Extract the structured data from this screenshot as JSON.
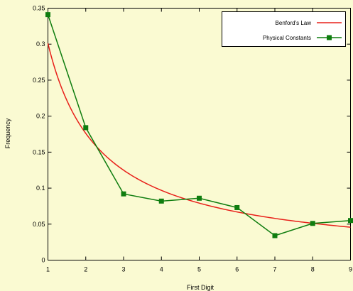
{
  "chart_data": {
    "type": "line",
    "title": "",
    "xlabel": "First Digit",
    "ylabel": "Frequency",
    "xlim": [
      1,
      9
    ],
    "ylim": [
      0,
      0.35
    ],
    "x_ticks": [
      "1",
      "2",
      "3",
      "4",
      "5",
      "6",
      "7",
      "8",
      "9"
    ],
    "y_ticks": [
      "0",
      "0.05",
      "0.1",
      "0.15",
      "0.2",
      "0.25",
      "0.3",
      "0.35"
    ],
    "grid": false,
    "legend_position": "top-right",
    "series": [
      {
        "name": "Benford's Law",
        "color": "#e8201a",
        "marker": "none",
        "x": [
          1,
          2,
          3,
          4,
          5,
          6,
          7,
          8,
          9
        ],
        "values": [
          0.301,
          0.176,
          0.125,
          0.097,
          0.079,
          0.067,
          0.058,
          0.051,
          0.046
        ]
      },
      {
        "name": "Physical Constants",
        "color": "#0f7d0f",
        "marker": "square",
        "x": [
          1,
          2,
          3,
          4,
          5,
          6,
          7,
          8,
          9
        ],
        "values": [
          0.341,
          0.184,
          0.092,
          0.082,
          0.086,
          0.073,
          0.034,
          0.051,
          0.055
        ]
      }
    ]
  }
}
